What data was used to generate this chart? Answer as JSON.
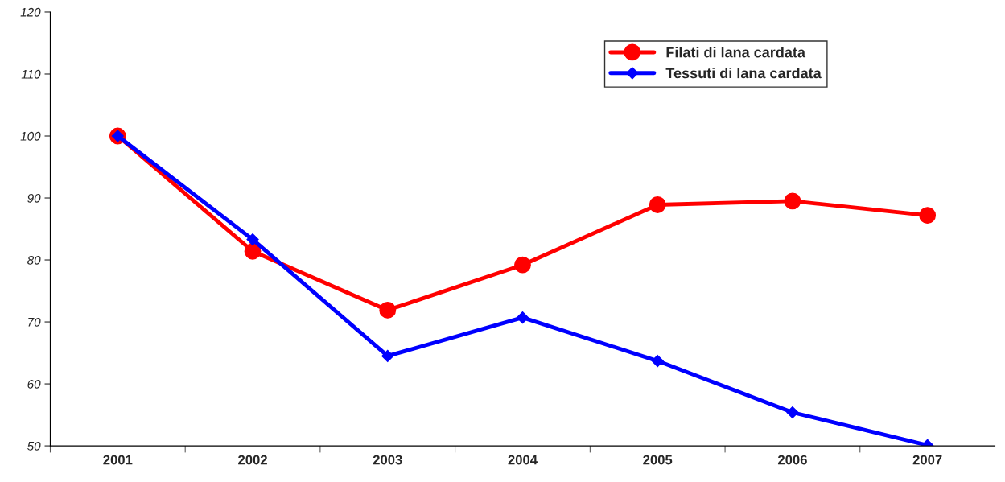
{
  "chart_data": {
    "type": "line",
    "categories": [
      "2001",
      "2002",
      "2003",
      "2004",
      "2005",
      "2006",
      "2007"
    ],
    "series": [
      {
        "name": "Filati di lana cardata",
        "color": "#ff0000",
        "marker": "circle",
        "values": [
          100,
          81.4,
          71.9,
          79.2,
          88.9,
          89.5,
          87.2
        ]
      },
      {
        "name": "Tessuti di lana cardata",
        "color": "#0000ff",
        "marker": "diamond",
        "values": [
          100,
          83.3,
          64.5,
          70.7,
          63.7,
          55.4,
          50.1
        ]
      }
    ],
    "ylim": [
      50,
      120
    ],
    "yticks": [
      50,
      60,
      70,
      80,
      90,
      100,
      110,
      120
    ],
    "grid": false,
    "legend": "top right",
    "line_style": "solid"
  }
}
